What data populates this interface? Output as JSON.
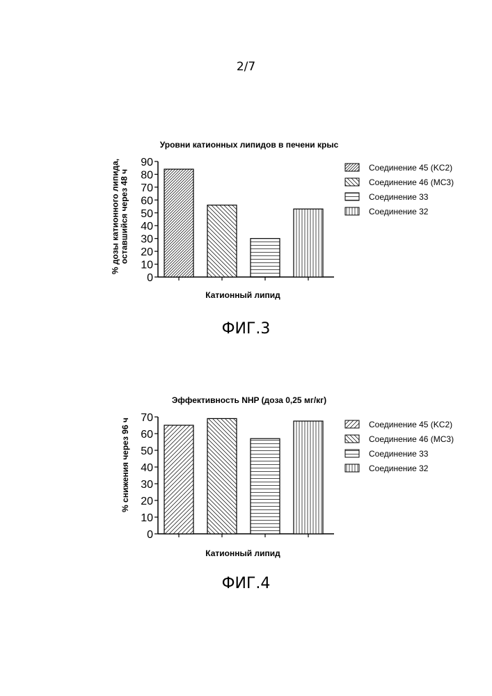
{
  "page": {
    "number": "2/7"
  },
  "figures": [
    {
      "caption": "ФИГ.3"
    },
    {
      "caption": "ФИГ.4"
    }
  ],
  "chart_data": [
    {
      "type": "bar",
      "title": "Уровни катионных липидов в печени крыс",
      "xlabel": "Катионный липид",
      "ylabel_lines": [
        "% дозы катионного липида,",
        "оставшийся через 48 ч"
      ],
      "ylim": [
        0,
        90
      ],
      "yticks": [
        0,
        10,
        20,
        30,
        40,
        50,
        60,
        70,
        80,
        90
      ],
      "legend_position": "right",
      "series": [
        {
          "name": "Соединение 45 (KC2)",
          "value": 84,
          "pattern": "diag-right-fine"
        },
        {
          "name": "Соединение 46 (MC3)",
          "value": 56,
          "pattern": "diag-left"
        },
        {
          "name": "Соединение 33",
          "value": 30,
          "pattern": "horizontal"
        },
        {
          "name": "Соединение 32",
          "value": 53,
          "pattern": "vertical"
        }
      ]
    },
    {
      "type": "bar",
      "title": "Эффективность NHP (доза 0,25 мг/кг)",
      "xlabel": "Катионный липид",
      "ylabel_lines": [
        "% снижения через 96 ч"
      ],
      "ylim": [
        0,
        70
      ],
      "yticks": [
        0,
        10,
        20,
        30,
        40,
        50,
        60,
        70
      ],
      "legend_position": "right",
      "series": [
        {
          "name": "Соединение 45 (KC2)",
          "value": 65,
          "pattern": "diag-right"
        },
        {
          "name": "Соединение 46 (MC3)",
          "value": 69,
          "pattern": "diag-left"
        },
        {
          "name": "Соединение 33",
          "value": 57,
          "pattern": "horizontal"
        },
        {
          "name": "Соединение 32",
          "value": 67.5,
          "pattern": "vertical"
        }
      ]
    }
  ]
}
